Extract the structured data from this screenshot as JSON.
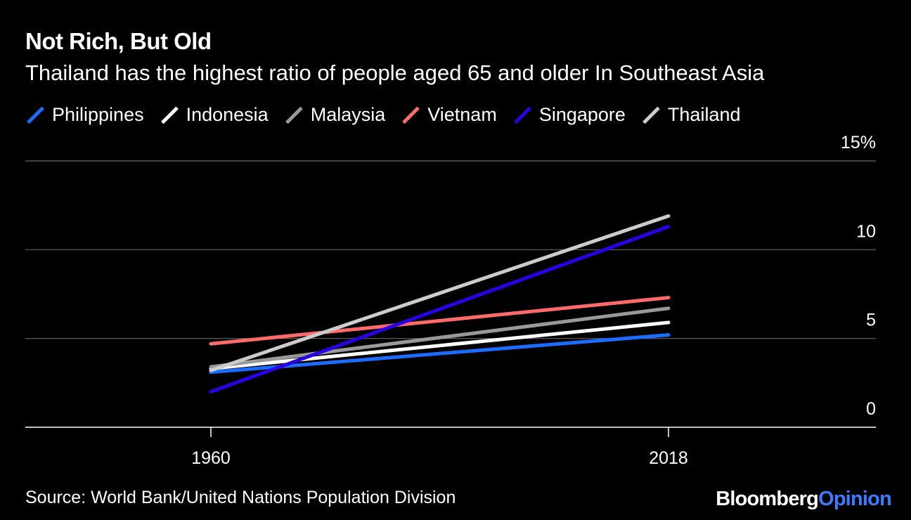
{
  "chart_data": {
    "type": "line",
    "title": "Not Rich, But Old",
    "subtitle": "Thailand has the highest ratio of people aged 65 and older In Southeast Asia",
    "x": [
      "1960",
      "2018"
    ],
    "series": [
      {
        "name": "Philippines",
        "color": "#1a6dff",
        "values": [
          3.1,
          5.2
        ]
      },
      {
        "name": "Indonesia",
        "color": "#ffffff",
        "values": [
          3.3,
          5.9
        ]
      },
      {
        "name": "Malaysia",
        "color": "#999999",
        "values": [
          3.4,
          6.7
        ]
      },
      {
        "name": "Vietnam",
        "color": "#ff6b6b",
        "values": [
          4.7,
          7.3
        ]
      },
      {
        "name": "Singapore",
        "color": "#2a00e6",
        "values": [
          2.0,
          11.3
        ]
      },
      {
        "name": "Thailand",
        "color": "#cccccc",
        "values": [
          3.2,
          11.9
        ]
      }
    ],
    "ylim": [
      0,
      15
    ],
    "yticks": [
      0,
      5,
      10,
      15
    ],
    "ytick_labels": [
      "0",
      "5",
      "10",
      "15%"
    ],
    "xlabel": "",
    "ylabel": "",
    "legend_position": "top-left",
    "grid": true
  },
  "footer": {
    "source": "Source: World Bank/United Nations Population Division",
    "brand_main": "Bloomberg",
    "brand_accent": "Opinion"
  }
}
